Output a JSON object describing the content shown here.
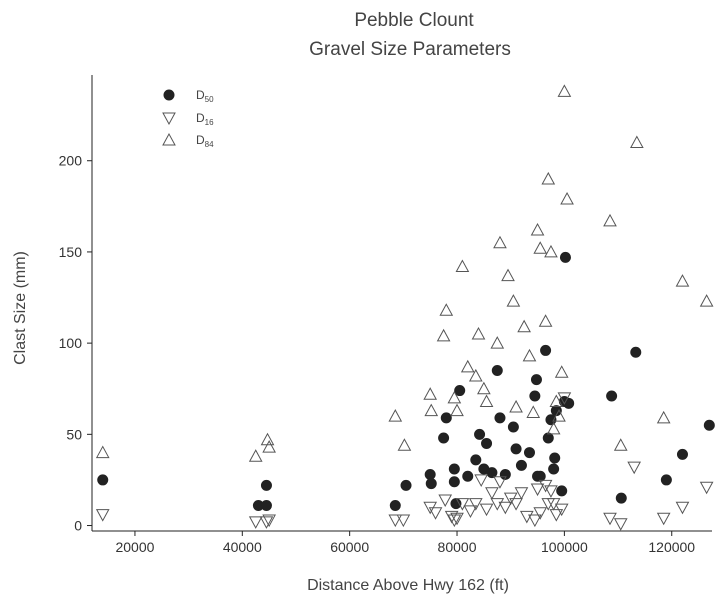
{
  "chart_data": {
    "type": "scatter",
    "title": "Pebble Clount",
    "subtitle": "Gravel Size Parameters",
    "xlabel": "Distance Above Hwy 162 (ft)",
    "ylabel": "Clast Size (mm)",
    "xlim": [
      12000,
      127500
    ],
    "ylim": [
      -3,
      247
    ],
    "xticks": [
      20000,
      40000,
      60000,
      80000,
      100000,
      120000
    ],
    "yticks": [
      0,
      50,
      100,
      150,
      200
    ],
    "grid": false,
    "legend_position": "top-left",
    "series": [
      {
        "name": "D50",
        "legend_main": "D",
        "legend_sub": "50",
        "marker": "filled-circle",
        "color": "#222222",
        "x": [
          14000,
          43000,
          44500,
          44500,
          68500,
          70500,
          75000,
          75200,
          77500,
          78000,
          79500,
          79500,
          79800,
          80500,
          82000,
          83500,
          84200,
          85000,
          85500,
          86500,
          87500,
          88000,
          89000,
          90500,
          91000,
          92000,
          93500,
          94500,
          94800,
          95000,
          95500,
          96500,
          97000,
          97500,
          98000,
          98200,
          98500,
          99500,
          100000,
          100200,
          100800,
          108800,
          110600,
          113300,
          119000,
          122000,
          127000
        ],
        "y": [
          25,
          11,
          11,
          22,
          11,
          22,
          28,
          23,
          48,
          59,
          24,
          31,
          12,
          74,
          27,
          36,
          50,
          31,
          45,
          29,
          85,
          59,
          28,
          54,
          42,
          33,
          40,
          71,
          80,
          27,
          27,
          96,
          48,
          58,
          31,
          37,
          63,
          19,
          68,
          147,
          67,
          71,
          15,
          95,
          25,
          39,
          55
        ]
      },
      {
        "name": "D16",
        "legend_main": "D",
        "legend_sub": "16",
        "marker": "down-triangle",
        "color": "#555555",
        "x": [
          14000,
          42500,
          44500,
          45000,
          68500,
          70000,
          75000,
          76000,
          77800,
          79000,
          79500,
          80000,
          81000,
          82500,
          83500,
          84500,
          85500,
          86500,
          87500,
          88000,
          89000,
          90000,
          91000,
          92000,
          93000,
          94500,
          95000,
          95500,
          96500,
          97000,
          97500,
          98000,
          98500,
          99500,
          100000,
          108500,
          110500,
          113000,
          118500,
          122000,
          126500
        ],
        "y": [
          6,
          2,
          2,
          3,
          3,
          3,
          10,
          7,
          14,
          5,
          3,
          4,
          12,
          8,
          12,
          25,
          9,
          18,
          12,
          24,
          10,
          15,
          12,
          18,
          5,
          3,
          20,
          7,
          22,
          12,
          19,
          12,
          6,
          9,
          70,
          4,
          1,
          32,
          4,
          10,
          21
        ]
      },
      {
        "name": "D84",
        "legend_main": "D",
        "legend_sub": "84",
        "marker": "up-triangle",
        "color": "#555555",
        "x": [
          14000,
          42500,
          44700,
          45000,
          68500,
          70200,
          75000,
          75200,
          77500,
          78000,
          79500,
          80000,
          81000,
          82000,
          83500,
          84000,
          85000,
          85500,
          87500,
          88000,
          89500,
          90500,
          91000,
          92500,
          93500,
          94200,
          95000,
          95500,
          96500,
          97000,
          97500,
          98000,
          98500,
          99000,
          99500,
          100000,
          100500,
          108500,
          110500,
          113500,
          118500,
          122000,
          126500
        ],
        "y": [
          40,
          38,
          47,
          43,
          60,
          44,
          72,
          63,
          104,
          118,
          70,
          63,
          142,
          87,
          82,
          105,
          75,
          68,
          100,
          155,
          137,
          123,
          65,
          109,
          93,
          62,
          162,
          152,
          112,
          190,
          150,
          53,
          68,
          60,
          84,
          238,
          179,
          167,
          44,
          210,
          59,
          134,
          123
        ]
      }
    ]
  }
}
